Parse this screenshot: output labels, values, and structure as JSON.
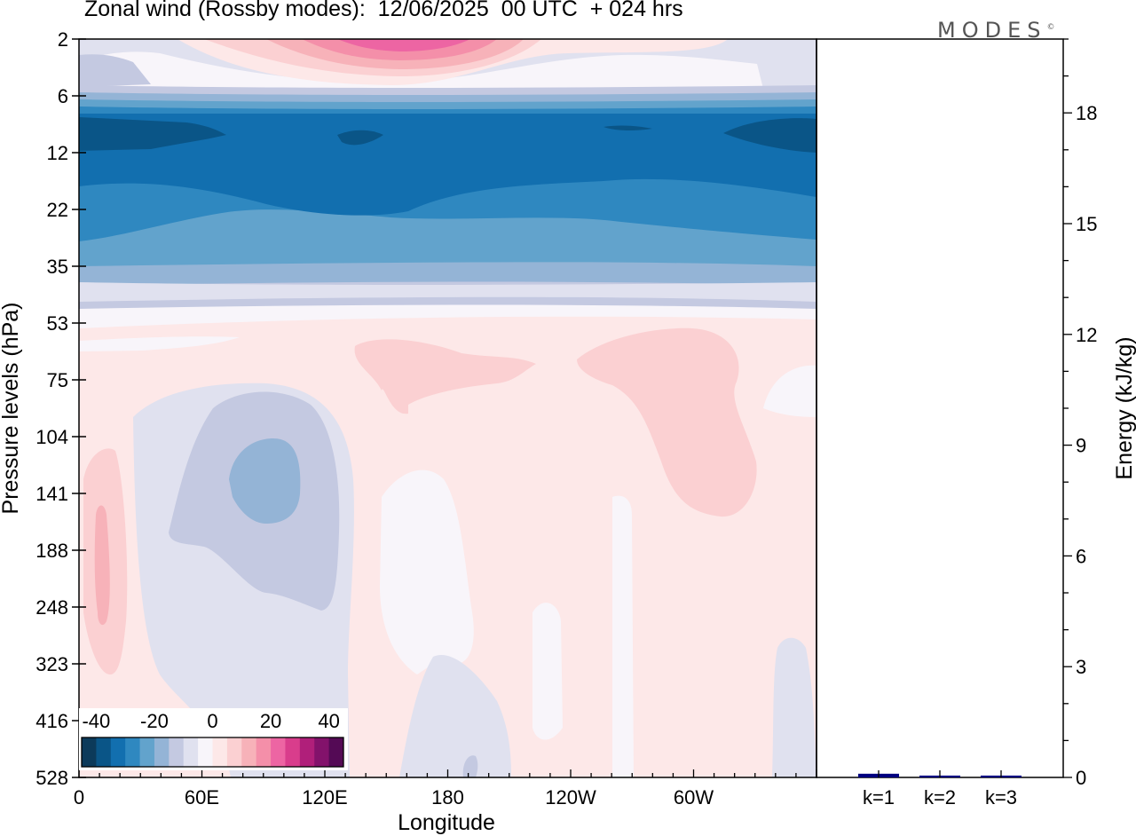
{
  "title": "Zonal wind (Rossby modes):  12/06/2025  00 UTC  + 024 hrs",
  "logo": "MODES",
  "logo_mark": "©",
  "chart_data": [
    {
      "type": "heatmap",
      "title": "Zonal wind (Rossby modes):  12/06/2025  00 UTC  + 024 hrs",
      "xlabel": "Longitude",
      "ylabel": "Pressure levels (hPa)",
      "x_ticks": [
        "0",
        "60E",
        "120E",
        "180",
        "120W",
        "60W"
      ],
      "y_ticks": [
        "2",
        "6",
        "12",
        "22",
        "35",
        "53",
        "75",
        "104",
        "141",
        "188",
        "248",
        "323",
        "416",
        "528"
      ],
      "xlim": [
        "0",
        "360"
      ],
      "ylim": [
        528,
        2
      ],
      "y_scale": "pressure levels",
      "colorbar": {
        "labels": [
          "-40",
          "-20",
          "0",
          "20",
          "40"
        ],
        "bin_edges": [
          -45,
          -40,
          -35,
          -30,
          -25,
          -20,
          -15,
          -10,
          -5,
          0,
          5,
          10,
          15,
          20,
          25,
          30,
          35,
          40,
          45
        ],
        "colors": [
          "#0c3a5a",
          "#0a5587",
          "#126faf",
          "#2f88c0",
          "#62a3cc",
          "#94b4d6",
          "#c4c9e1",
          "#e0e1ef",
          "#f8f5fa",
          "#fde8e8",
          "#fbd0d2",
          "#f7b2b9",
          "#f48fa9",
          "#ed65a3",
          "#d93d8c",
          "#b01f7a",
          "#83126b",
          "#540a55"
        ],
        "placement": "bottom-left"
      },
      "field": [
        {
          "level": 2,
          "lon": "0–50",
          "value": -10
        },
        {
          "level": 2,
          "lon": "60E–140W",
          "value": 15
        },
        {
          "level": 2,
          "lon": "150E–170E",
          "value": 25
        },
        {
          "level": 6,
          "lon": "0–360",
          "value": -15
        },
        {
          "level": 10,
          "lon": "0–360",
          "value": -35
        },
        {
          "level": 12,
          "lon": "0–360",
          "value": -30
        },
        {
          "level": 22,
          "lon": "0–360",
          "value": -25
        },
        {
          "level": 35,
          "lon": "0–360",
          "value": -15
        },
        {
          "level": 53,
          "lon": "0–360",
          "value": 0
        },
        {
          "level": 75,
          "lon": "140E–120W",
          "value": 5
        },
        {
          "level": 104,
          "lon": "60W–40W",
          "value": 5
        },
        {
          "level": 141,
          "lon": "70E–100E",
          "value": -15
        },
        {
          "level": 188,
          "lon": "40E–120E",
          "value": -10
        },
        {
          "level": 248,
          "lon": "5E–15E",
          "value": 10
        },
        {
          "level": 416,
          "lon": "170E–160W",
          "value": -5
        }
      ]
    },
    {
      "type": "bar",
      "categories": [
        "k=1",
        "k=2",
        "k=3"
      ],
      "values": [
        0.1,
        0.05,
        0.05
      ],
      "ylabel": "Energy (kJ/kg)",
      "y_ticks": [
        "0",
        "3",
        "6",
        "9",
        "12",
        "15",
        "18"
      ],
      "ylim": [
        0,
        20
      ],
      "bar_color": "#000080"
    }
  ]
}
